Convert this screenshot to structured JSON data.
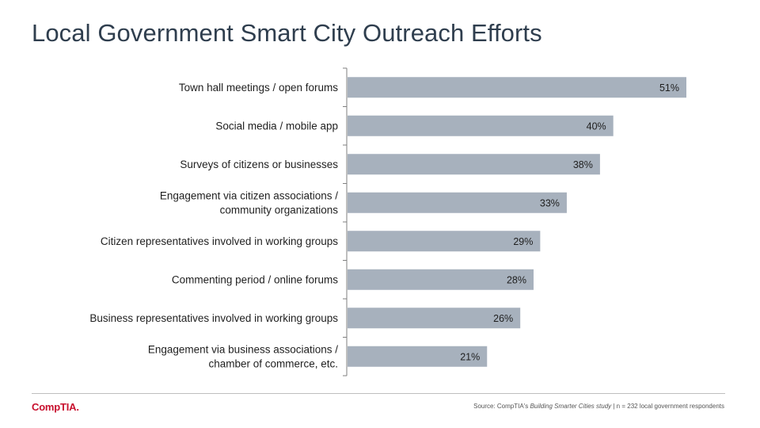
{
  "title": "Local Government Smart City Outreach Efforts",
  "footer": {
    "logo": "CompTIA.",
    "source_prefix": "Source: CompTIA's ",
    "source_study": "Building Smarter Cities study",
    "source_suffix": " | n = 232 local government respondents"
  },
  "colors": {
    "bar": "#a7b1bd",
    "axis": "#7f7f7f",
    "title": "#2f3e4e",
    "brand": "#c8102e"
  },
  "chart_data": {
    "type": "bar",
    "orientation": "horizontal",
    "title": "",
    "xlabel": "",
    "ylabel": "",
    "xlim": [
      0,
      51
    ],
    "grid": false,
    "value_suffix": "%",
    "categories": [
      [
        "Town hall meetings / open forums"
      ],
      [
        "Social media / mobile app"
      ],
      [
        "Surveys of citizens or businesses"
      ],
      [
        "Engagement via citizen associations /",
        "community organizations"
      ],
      [
        "Citizen representatives involved in working groups"
      ],
      [
        "Commenting period / online forums"
      ],
      [
        "Business representatives involved in working groups"
      ],
      [
        "Engagement via business associations /",
        "chamber of commerce, etc."
      ]
    ],
    "values": [
      51,
      40,
      38,
      33,
      29,
      28,
      26,
      21
    ]
  }
}
